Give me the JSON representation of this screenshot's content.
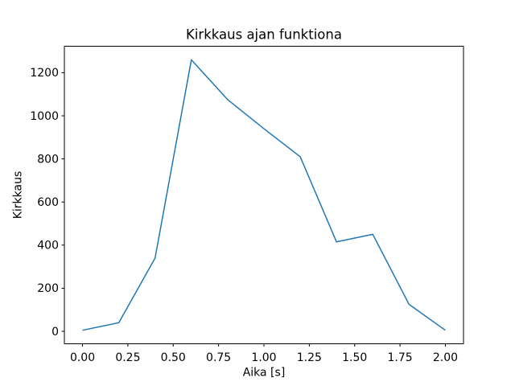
{
  "figure": {
    "background_color": "#ffffff"
  },
  "chart_data": {
    "type": "line",
    "title": "Kirkkaus ajan funktiona",
    "xlabel": "Aika [s]",
    "ylabel": "Kirkkaus",
    "x": [
      0.0,
      0.2,
      0.4,
      0.6,
      0.8,
      1.0,
      1.2,
      1.4,
      1.6,
      1.8,
      2.0
    ],
    "values": [
      5,
      40,
      340,
      1260,
      1075,
      940,
      810,
      415,
      450,
      125,
      5
    ],
    "series": [
      {
        "name": "Kirkkaus",
        "values": [
          5,
          40,
          340,
          1260,
          1075,
          940,
          810,
          415,
          450,
          125,
          5
        ]
      }
    ],
    "xlim": [
      -0.1,
      2.1
    ],
    "ylim": [
      -57.75,
      1322.75
    ],
    "xticks": [
      0.0,
      0.25,
      0.5,
      0.75,
      1.0,
      1.25,
      1.5,
      1.75,
      2.0
    ],
    "xtick_labels": [
      "0.00",
      "0.25",
      "0.50",
      "0.75",
      "1.00",
      "1.25",
      "1.50",
      "1.75",
      "2.00"
    ],
    "yticks": [
      0,
      200,
      400,
      600,
      800,
      1000,
      1200
    ],
    "ytick_labels": [
      "0",
      "200",
      "400",
      "600",
      "800",
      "1000",
      "1200"
    ],
    "line_color": "#1f77b4",
    "line_width": 1.5,
    "axis_color": "#000000",
    "grid": false,
    "legend_position": "none"
  }
}
